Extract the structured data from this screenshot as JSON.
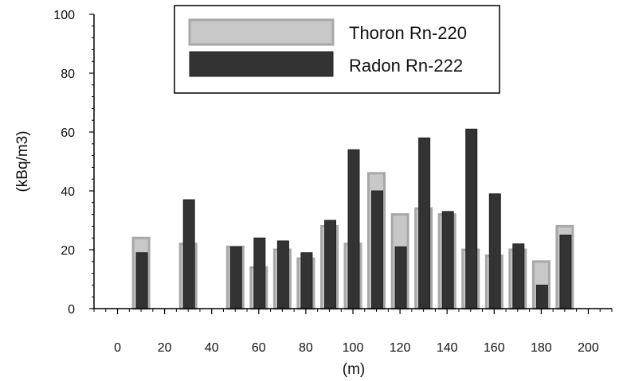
{
  "chart_data": {
    "type": "bar",
    "xlabel": "(m)",
    "ylabel": "(kBq/m3)",
    "xlim": [
      -10,
      210
    ],
    "ylim": [
      0,
      100
    ],
    "x_ticks": [
      "0",
      "20",
      "40",
      "60",
      "80",
      "100",
      "120",
      "140",
      "160",
      "180",
      "200"
    ],
    "y_ticks": [
      "0",
      "20",
      "40",
      "60",
      "80",
      "100"
    ],
    "legend_position": "top-center",
    "series": [
      {
        "name": "Thoron Rn-220",
        "color": "#c8c8c8",
        "edge_color": "#a8a8a8",
        "x": [
          10,
          30,
          50,
          60,
          70,
          80,
          90,
          100,
          110,
          120,
          130,
          140,
          150,
          160,
          170,
          180,
          190
        ],
        "values": [
          24,
          22,
          21,
          14,
          20,
          17,
          28,
          22,
          46,
          32,
          34,
          32,
          20,
          18,
          20,
          16,
          28
        ]
      },
      {
        "name": "Radon Rn-222",
        "color": "#333333",
        "edge_color": "#222222",
        "x": [
          10,
          30,
          50,
          60,
          70,
          80,
          90,
          100,
          110,
          120,
          130,
          140,
          150,
          160,
          170,
          180,
          190
        ],
        "values": [
          19,
          37,
          21,
          24,
          23,
          19,
          30,
          54,
          40,
          21,
          58,
          33,
          61,
          39,
          22,
          8,
          25
        ]
      }
    ]
  }
}
